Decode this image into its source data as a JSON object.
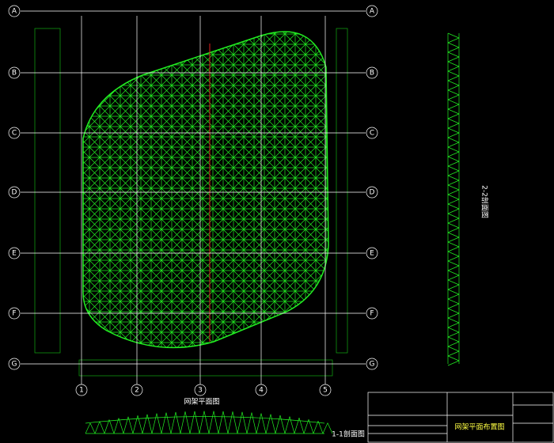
{
  "plan": {
    "row_axes": [
      "A",
      "B",
      "C",
      "D",
      "E",
      "F",
      "G"
    ],
    "column_axes": [
      "1",
      "2",
      "3",
      "4",
      "5"
    ],
    "caption": "网架平面图"
  },
  "elevation": {
    "caption": "1-1剖面图"
  },
  "side_view": {
    "caption": "2-2剖面图"
  },
  "title_block": {
    "drawing_name": "网架平面布置图"
  }
}
